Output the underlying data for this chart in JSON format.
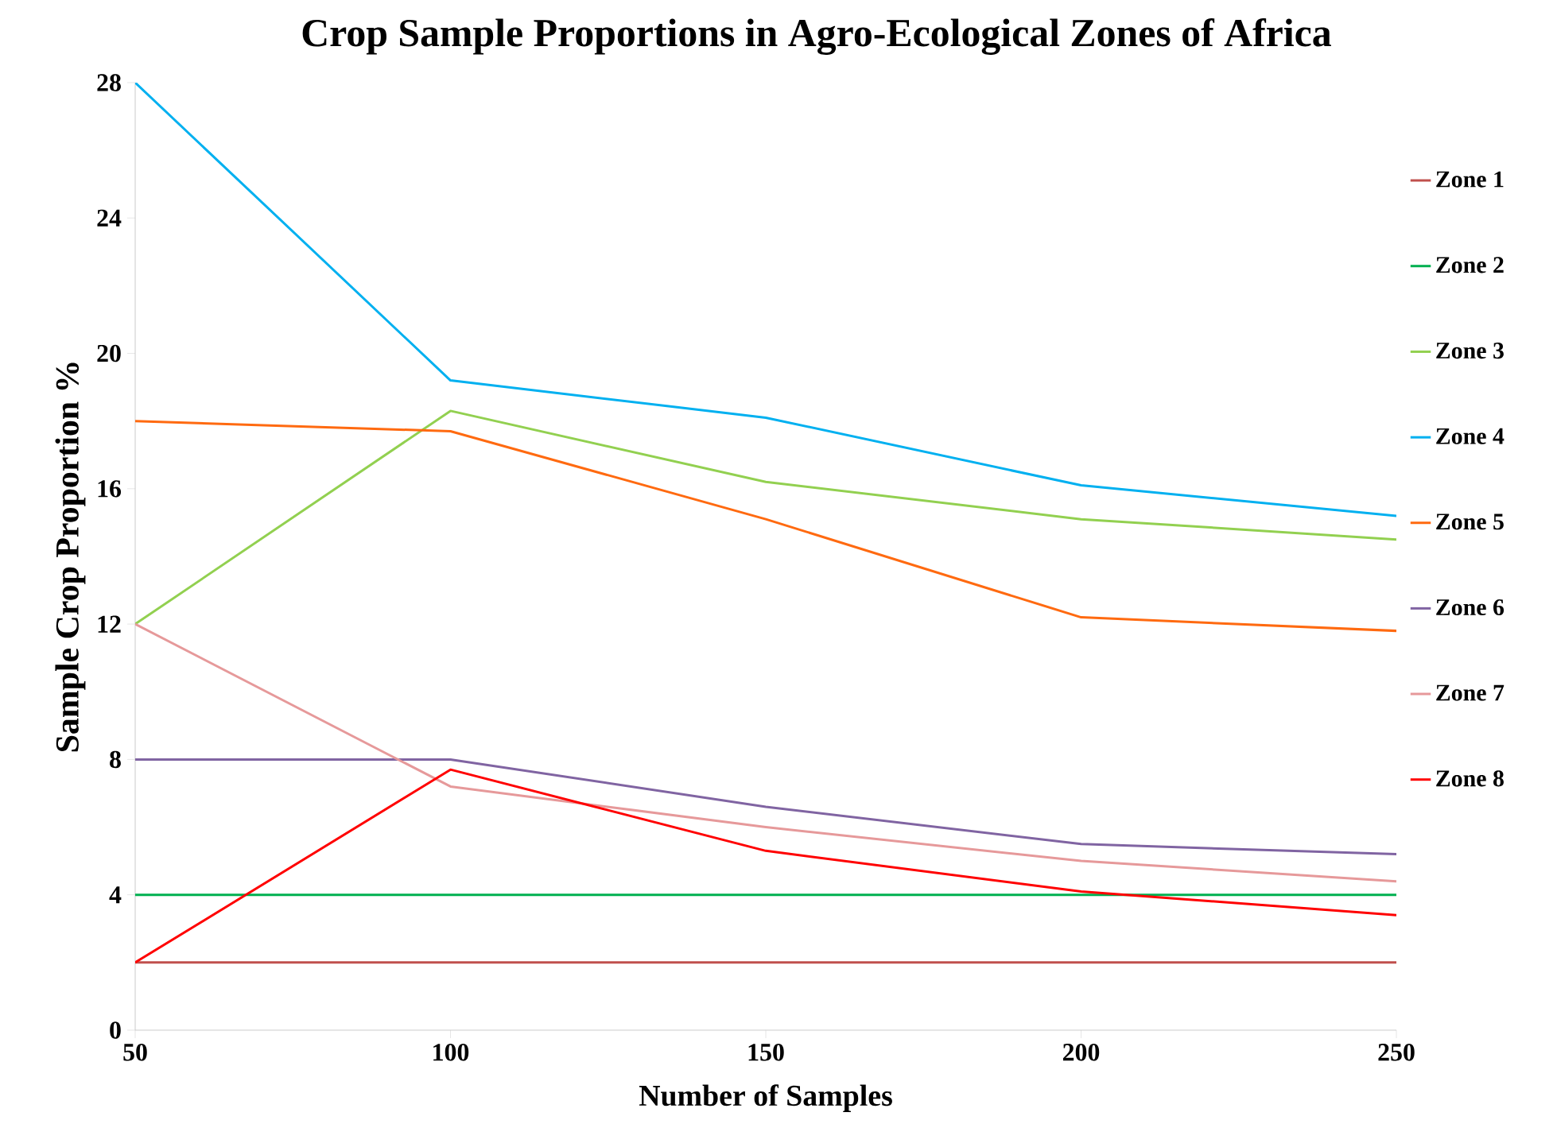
{
  "chart_data": {
    "type": "line",
    "title": "Crop Sample Proportions in Agro-Ecological Zones of Africa",
    "xlabel": "Number of Samples",
    "ylabel": "Sample Crop Proportion  %",
    "x": [
      50,
      100,
      150,
      200,
      250
    ],
    "xlim": [
      50,
      250
    ],
    "xticks": [
      50,
      100,
      150,
      200,
      250
    ],
    "ylim": [
      0,
      28
    ],
    "yticks": [
      0,
      4,
      8,
      12,
      16,
      20,
      24,
      28
    ],
    "grid": false,
    "legend": "right",
    "marker": "none",
    "line_style": "solid",
    "series": [
      {
        "name": "Zone 1",
        "color": "#c0504d",
        "values": [
          2,
          2,
          2,
          2,
          2
        ]
      },
      {
        "name": "Zone 2",
        "color": "#00b050",
        "values": [
          4,
          4,
          4,
          4,
          4
        ]
      },
      {
        "name": "Zone 3",
        "color": "#92d050",
        "values": [
          12,
          18.3,
          16.2,
          15.1,
          14.5
        ]
      },
      {
        "name": "Zone 4",
        "color": "#00b0f0",
        "values": [
          28,
          19.2,
          18.1,
          16.1,
          15.2
        ]
      },
      {
        "name": "Zone 5",
        "color": "#ff6a10",
        "values": [
          18,
          17.7,
          15.1,
          12.2,
          11.8
        ]
      },
      {
        "name": "Zone 6",
        "color": "#8064a2",
        "values": [
          8,
          8.0,
          6.6,
          5.5,
          5.2
        ]
      },
      {
        "name": "Zone 7",
        "color": "#e6999a",
        "values": [
          12,
          7.2,
          6.0,
          5.0,
          4.4
        ]
      },
      {
        "name": "Zone 8",
        "color": "#ff0000",
        "values": [
          2,
          7.7,
          5.3,
          4.1,
          3.4
        ]
      }
    ]
  }
}
